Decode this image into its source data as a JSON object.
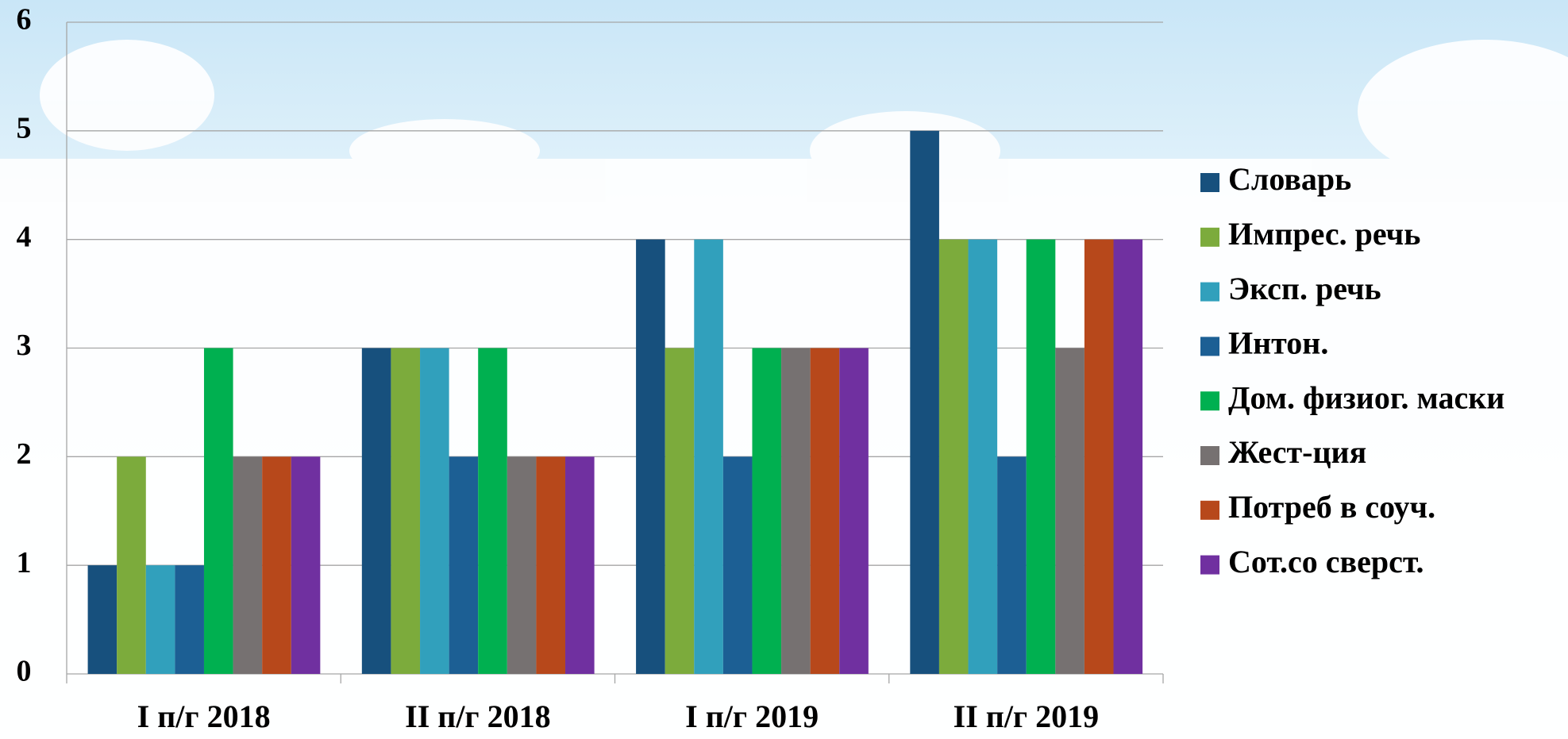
{
  "chart_data": {
    "type": "bar",
    "categories": [
      "I п/г 2018",
      "II п/г 2018",
      "I п/г 2019",
      "II п/г 2019"
    ],
    "series": [
      {
        "name": "Словарь",
        "color": "#17507d",
        "values": [
          1,
          3,
          4,
          5
        ]
      },
      {
        "name": "Импрес. речь",
        "color": "#7cab3c",
        "values": [
          2,
          3,
          3,
          4
        ]
      },
      {
        "name": "Эксп. речь",
        "color": "#31a0bc",
        "values": [
          1,
          3,
          4,
          4
        ]
      },
      {
        "name": "Интон.",
        "color": "#1c5f94",
        "values": [
          1,
          2,
          2,
          2
        ]
      },
      {
        "name": "Дом. физиог. маски",
        "color": "#00b050",
        "values": [
          3,
          3,
          3,
          4
        ]
      },
      {
        "name": "Жест-ция",
        "color": "#767171",
        "values": [
          2,
          2,
          3,
          3
        ]
      },
      {
        "name": "Потреб в соуч.",
        "color": "#b7481b",
        "values": [
          2,
          2,
          3,
          4
        ]
      },
      {
        "name": "Сот.со сверст.",
        "color": "#7030a0",
        "values": [
          2,
          2,
          3,
          4
        ]
      }
    ],
    "ylim": [
      0,
      6
    ],
    "yticks": [
      0,
      1,
      2,
      3,
      4,
      5,
      6
    ],
    "grid": true,
    "legend": "right"
  }
}
